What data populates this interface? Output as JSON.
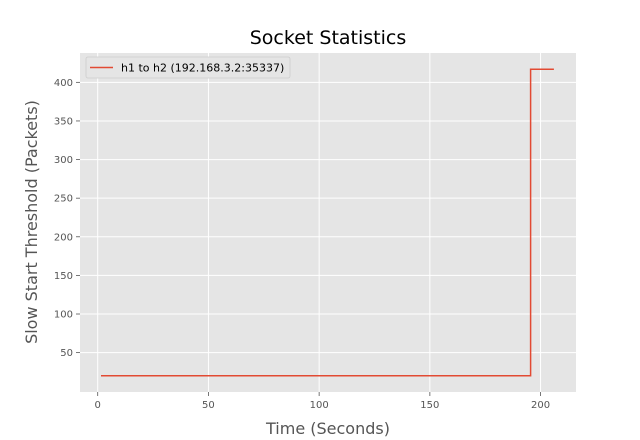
{
  "chart_data": {
    "type": "line",
    "title": "Socket Statistics",
    "xlabel": "Time (Seconds)",
    "ylabel": "Slow Start Threshold (Packets)",
    "xlim": [
      -8,
      216
    ],
    "ylim": [
      -1,
      438
    ],
    "xticks": [
      0,
      50,
      100,
      150,
      200
    ],
    "yticks": [
      50,
      100,
      150,
      200,
      250,
      300,
      350,
      400
    ],
    "grid": true,
    "legend_position": "top-left",
    "series": [
      {
        "name": "h1 to h2 (192.168.3.2:35337)",
        "color": "#E24A33",
        "step": true,
        "x": [
          1.5,
          195.5,
          195.5,
          206
        ],
        "y": [
          20,
          20,
          417,
          417
        ]
      }
    ]
  }
}
